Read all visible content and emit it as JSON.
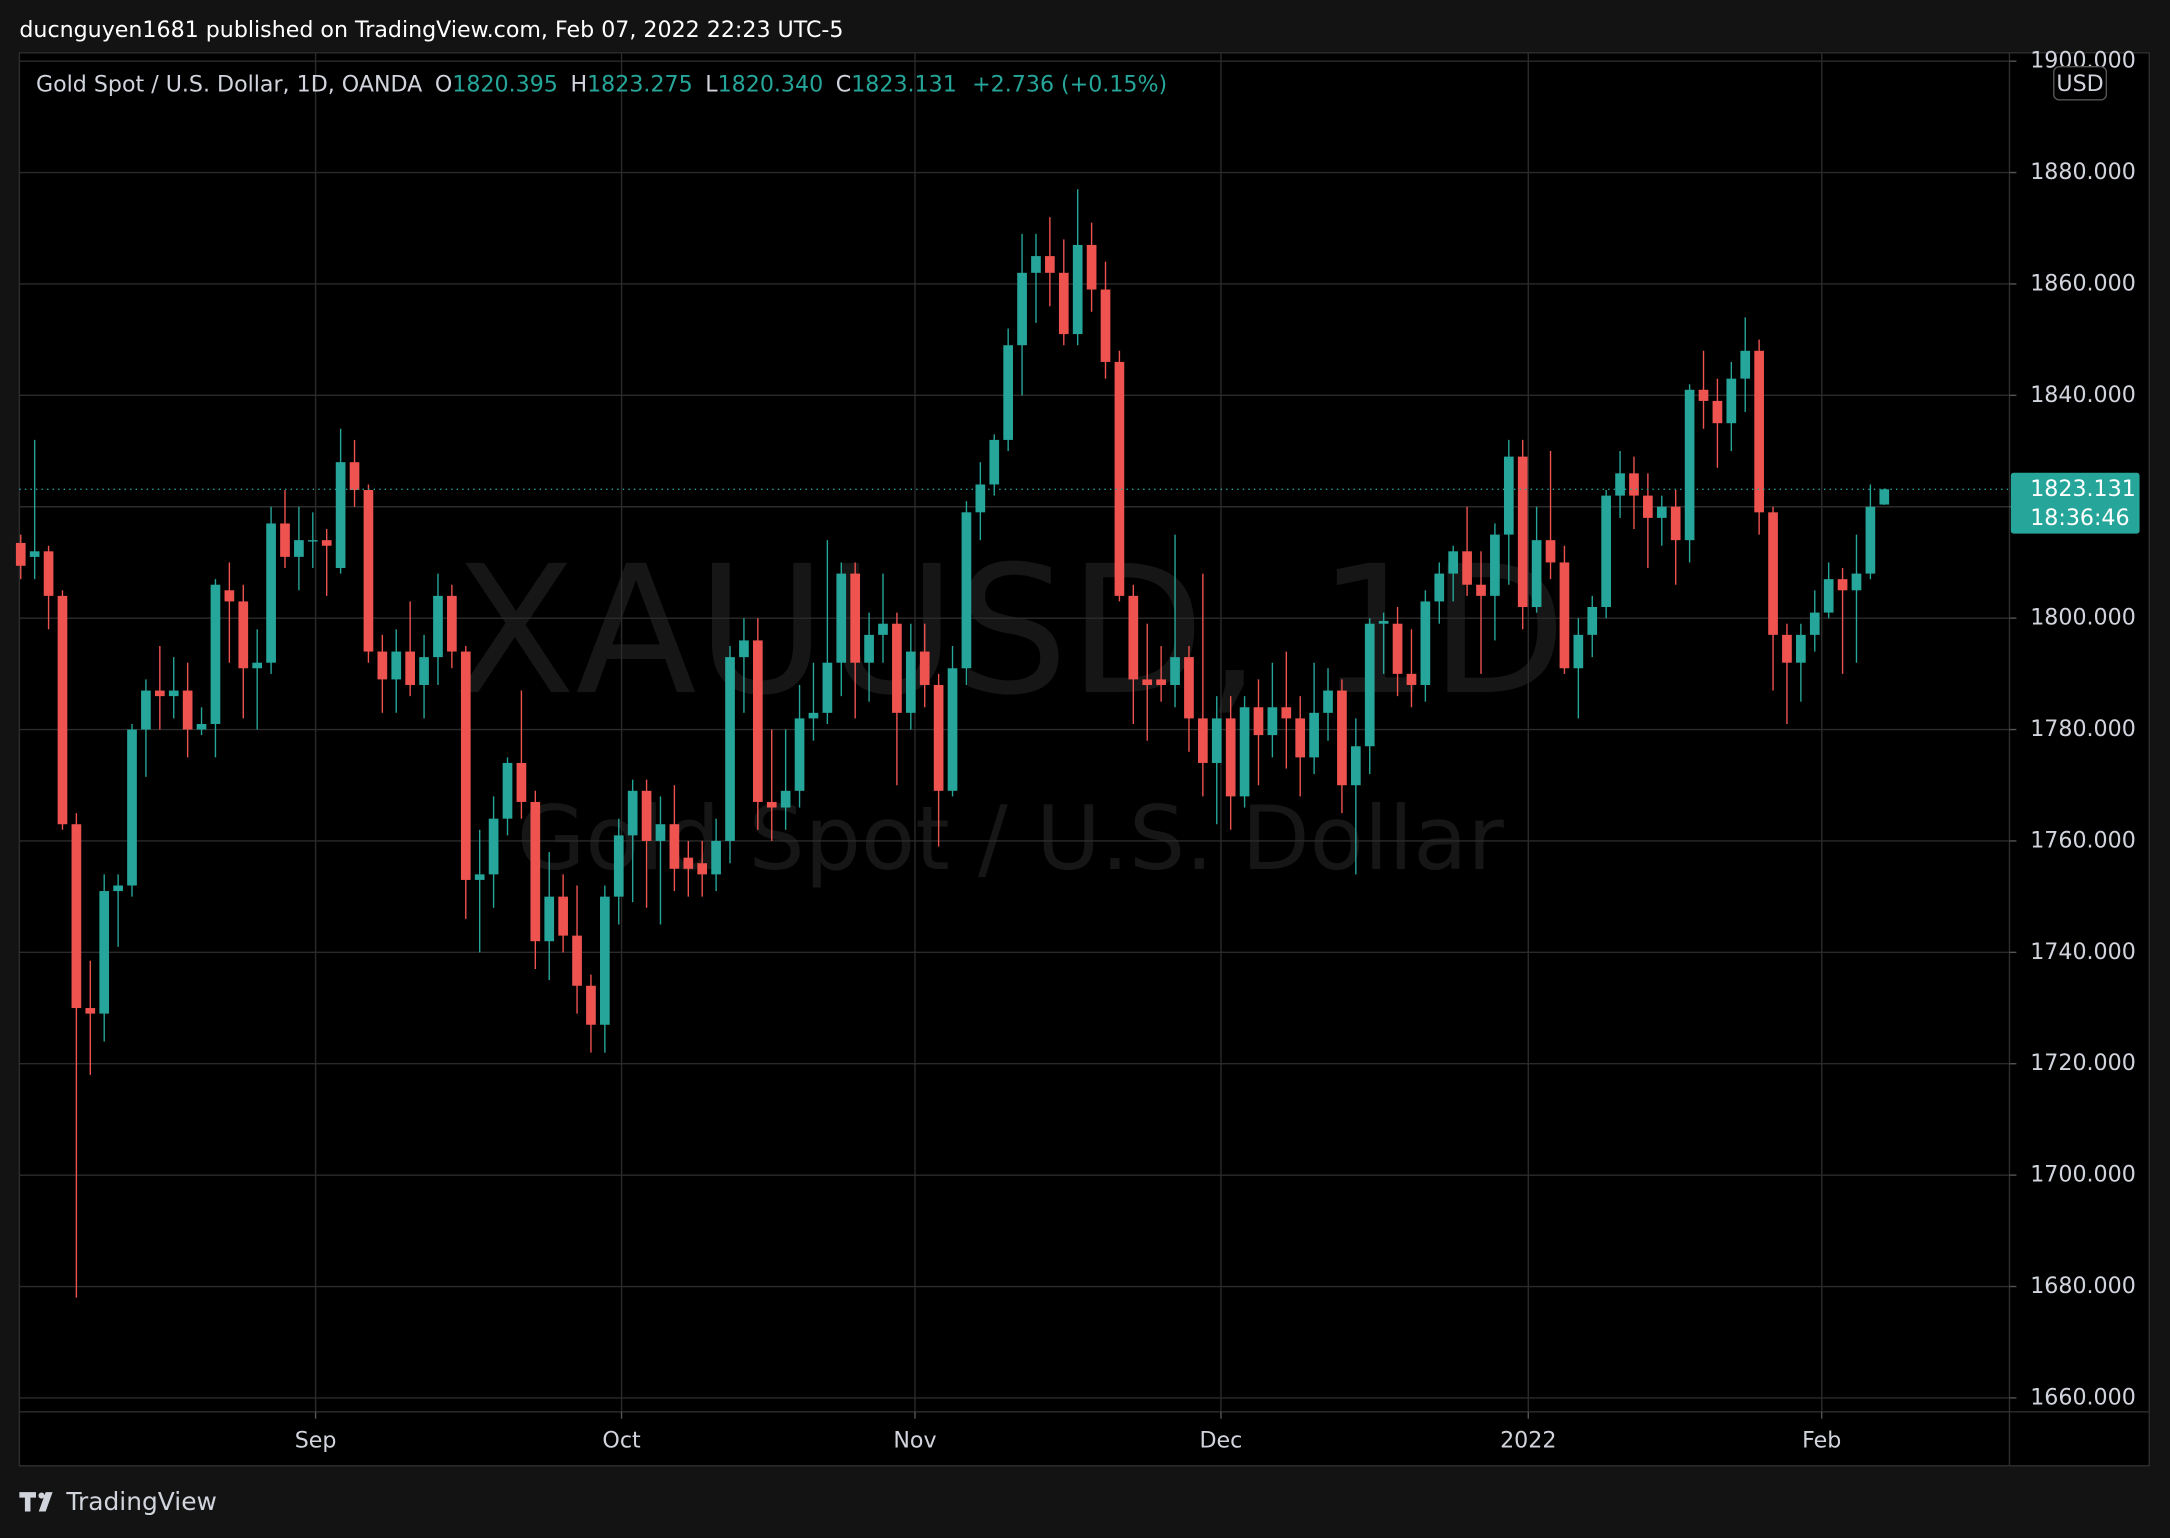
{
  "header": {
    "publisher": "ducnguyen1681 published on TradingView.com, Feb 07, 2022 22:23 UTC-5",
    "brand": "TradingView"
  },
  "chart_data": {
    "type": "candlestick",
    "legend": {
      "symbol": "Gold Spot / U.S. Dollar, 1D, OANDA",
      "o_label": "O",
      "open": "1820.395",
      "h_label": "H",
      "high": "1823.275",
      "l_label": "L",
      "low": "1820.340",
      "c_label": "C",
      "close": "1823.131",
      "change": "+2.736 (+0.15%)"
    },
    "watermark": {
      "ticker": "XAUUSD, 1D",
      "name": "Gold Spot / U.S. Dollar"
    },
    "currency": "USD",
    "countdown": "18:36:46",
    "up_color": "#26a69a",
    "down_color": "#ef5350",
    "grid": true,
    "open": [
      1813.5,
      1811,
      1812,
      1804,
      1763,
      1730,
      1729,
      1751,
      1752,
      1780,
      1787,
      1786,
      1787,
      1780,
      1781,
      1805,
      1803,
      1791,
      1792,
      1817,
      1811,
      1814,
      1814,
      1809,
      1828,
      1823,
      1794,
      1789,
      1794,
      1788,
      1793,
      1804,
      1794,
      1753,
      1754,
      1764,
      1774,
      1767,
      1742,
      1750,
      1743,
      1734,
      1727,
      1750,
      1761,
      1769,
      1760,
      1763,
      1757,
      1756,
      1754,
      1760,
      1793,
      1796,
      1767,
      1766,
      1769,
      1782,
      1783,
      1792,
      1808,
      1792,
      1797,
      1799,
      1783,
      1794,
      1788,
      1769,
      1791,
      1819,
      1824,
      1832,
      1849,
      1862,
      1865,
      1862,
      1851,
      1867,
      1859,
      1846,
      1804,
      1789,
      1789,
      1788,
      1793,
      1782,
      1774,
      1782,
      1768,
      1784,
      1779,
      1784,
      1782,
      1775,
      1783,
      1787,
      1770,
      1777,
      1799,
      1799,
      1790,
      1788,
      1803,
      1808,
      1812,
      1806,
      1804,
      1815,
      1829,
      1802,
      1814,
      1810,
      1791,
      1797,
      1802,
      1822,
      1826,
      1822,
      1818,
      1820,
      1814,
      1841,
      1839,
      1835,
      1843,
      1848,
      1819,
      1797,
      1792,
      1797,
      1801,
      1807,
      1805,
      1808,
      1820.395
    ],
    "high": [
      1815,
      1832,
      1813,
      1805,
      1765,
      1738.5,
      1754,
      1754,
      1781,
      1789,
      1795,
      1793,
      1792,
      1784,
      1807,
      1810,
      1806,
      1798,
      1820,
      1823,
      1820,
      1819,
      1816,
      1834,
      1832,
      1824,
      1797,
      1798,
      1803,
      1797,
      1808,
      1806,
      1795,
      1762,
      1768,
      1775,
      1787,
      1769,
      1758,
      1754,
      1752,
      1736,
      1752,
      1764,
      1771,
      1771,
      1768,
      1770,
      1760,
      1760,
      1764,
      1795,
      1800,
      1800,
      1780,
      1780,
      1788,
      1792,
      1814,
      1810,
      1810,
      1801,
      1808,
      1801,
      1799,
      1799,
      1790,
      1795,
      1821,
      1828,
      1833,
      1852,
      1869,
      1869,
      1872,
      1868,
      1877,
      1871,
      1864,
      1848,
      1806,
      1799,
      1795,
      1815,
      1795,
      1808,
      1786,
      1786,
      1786,
      1789,
      1792,
      1794,
      1786,
      1792,
      1791,
      1789,
      1782,
      1800,
      1801,
      1802,
      1798,
      1805,
      1810,
      1813,
      1820,
      1812,
      1817,
      1832,
      1832,
      1820,
      1830,
      1813,
      1800,
      1804,
      1823,
      1830,
      1829,
      1826,
      1822,
      1823,
      1842,
      1848,
      1843,
      1846,
      1854,
      1850,
      1820,
      1799,
      1799,
      1805,
      1810,
      1809,
      1815,
      1824,
      1823.275
    ],
    "low": [
      1807,
      1807,
      1798,
      1762,
      1678,
      1718,
      1724,
      1741,
      1750,
      1771.5,
      1780,
      1782,
      1775,
      1779,
      1775,
      1792,
      1782,
      1780,
      1790,
      1809,
      1805,
      1809,
      1804,
      1808,
      1820,
      1792,
      1783,
      1783,
      1786,
      1782,
      1788,
      1791,
      1746,
      1740,
      1748,
      1761,
      1764,
      1737,
      1735,
      1740,
      1729,
      1722,
      1722,
      1745,
      1749,
      1748,
      1745,
      1751,
      1750,
      1750,
      1751,
      1756,
      1783,
      1762,
      1760,
      1762,
      1766,
      1778,
      1781,
      1786,
      1782,
      1785,
      1792,
      1770,
      1780,
      1784,
      1759,
      1768,
      1788,
      1814,
      1822,
      1830,
      1840,
      1853,
      1856,
      1849,
      1849,
      1855,
      1843,
      1803,
      1781,
      1778,
      1785,
      1784,
      1776,
      1768,
      1763,
      1762,
      1766,
      1770,
      1775,
      1773,
      1768,
      1772,
      1778,
      1765,
      1754,
      1772,
      1790,
      1786,
      1784,
      1785,
      1799,
      1803,
      1804,
      1790,
      1796,
      1806,
      1798,
      1801,
      1807,
      1790,
      1782,
      1793,
      1800,
      1818,
      1816,
      1809,
      1813,
      1806,
      1810,
      1834,
      1827,
      1830,
      1837,
      1815,
      1787,
      1781,
      1785,
      1794,
      1800,
      1790,
      1792,
      1807,
      1820.34
    ],
    "close": [
      1809.4,
      1812,
      1804,
      1763,
      1730,
      1729,
      1751,
      1752,
      1780,
      1787,
      1786,
      1787,
      1780,
      1781,
      1806,
      1803,
      1791,
      1792,
      1817,
      1811,
      1814,
      1814,
      1813,
      1828,
      1823,
      1794,
      1789,
      1794,
      1788,
      1793,
      1804,
      1794,
      1753,
      1754,
      1764,
      1774,
      1767,
      1742,
      1750,
      1743,
      1734,
      1727,
      1750,
      1761,
      1769,
      1760,
      1763,
      1755,
      1755,
      1754,
      1760,
      1793,
      1796,
      1767,
      1766,
      1769,
      1782,
      1783,
      1792,
      1808,
      1792,
      1797,
      1799,
      1783,
      1794,
      1788,
      1769,
      1791,
      1819,
      1824,
      1832,
      1849,
      1862,
      1865,
      1862,
      1851,
      1867,
      1859,
      1846,
      1804,
      1789,
      1788,
      1788,
      1793,
      1782,
      1774,
      1782,
      1768,
      1784,
      1779,
      1784,
      1782,
      1775,
      1783,
      1787,
      1770,
      1777,
      1799,
      1799.5,
      1790,
      1788,
      1803,
      1808,
      1812,
      1806,
      1804,
      1815,
      1829,
      1802,
      1814,
      1810,
      1791,
      1797,
      1802,
      1822,
      1826,
      1822,
      1818,
      1820,
      1814,
      1841,
      1839,
      1835,
      1843,
      1848,
      1819,
      1797,
      1792,
      1797,
      1801,
      1807,
      1805,
      1808,
      1820,
      1823.131
    ],
    "xlim": [
      0,
      143
    ],
    "xticks": [
      {
        "value": 21.2,
        "label": "Sep"
      },
      {
        "value": 43.2,
        "label": "Oct"
      },
      {
        "value": 64.3,
        "label": "Nov"
      },
      {
        "value": 86.3,
        "label": "Dec"
      },
      {
        "value": 108.4,
        "label": "2022"
      },
      {
        "value": 129.5,
        "label": "Feb"
      }
    ],
    "ylim": [
      1658,
      1901
    ],
    "yticks": [
      {
        "value": 1660,
        "label": "1660.000"
      },
      {
        "value": 1680,
        "label": "1680.000"
      },
      {
        "value": 1700,
        "label": "1700.000"
      },
      {
        "value": 1720,
        "label": "1720.000"
      },
      {
        "value": 1740,
        "label": "1740.000"
      },
      {
        "value": 1760,
        "label": "1760.000"
      },
      {
        "value": 1780,
        "label": "1780.000"
      },
      {
        "value": 1800,
        "label": "1800.000"
      },
      {
        "value": 1820,
        "label": "1820.000"
      },
      {
        "value": 1840,
        "label": "1840.000"
      },
      {
        "value": 1860,
        "label": "1860.000"
      },
      {
        "value": 1880,
        "label": "1880.000"
      },
      {
        "value": 1900,
        "label": "1900.000"
      }
    ]
  }
}
